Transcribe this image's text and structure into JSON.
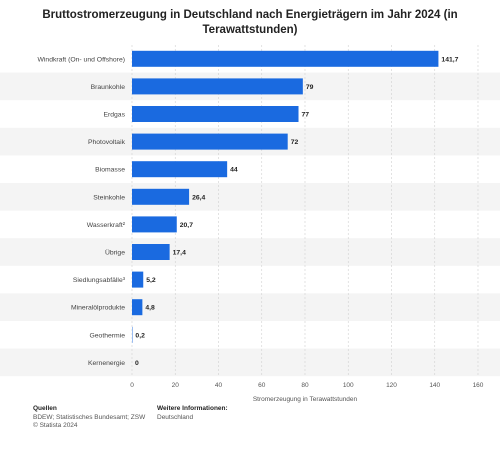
{
  "chart_data": {
    "type": "bar",
    "orientation": "horizontal",
    "title": "Bruttostromerzeugung in Deutschland nach Energieträgern im Jahr 2024 (in Terawattstunden)",
    "categories": [
      "Windkraft (On- und Offshore)",
      "Braunkohle",
      "Erdgas",
      "Photovoltaik",
      "Biomasse",
      "Steinkohle",
      "Wasserkraft²",
      "Übrige",
      "Siedlungsabfälle³",
      "Mineralölprodukte",
      "Geothermie",
      "Kernenergie"
    ],
    "values": [
      141.7,
      79,
      77,
      72,
      44,
      26.4,
      20.7,
      17.4,
      5.2,
      4.8,
      0.2,
      0
    ],
    "value_labels": [
      "141,7",
      "79",
      "77",
      "72",
      "44",
      "26,4",
      "20,7",
      "17,4",
      "5,2",
      "4,8",
      "0,2",
      "0"
    ],
    "xlabel": "Stromerzeugung in Terawattstunden",
    "ylabel": "",
    "xlim": [
      0,
      160
    ],
    "xticks": [
      0,
      20,
      40,
      60,
      80,
      100,
      120,
      140,
      160
    ],
    "grid": true,
    "bar_color": "#1a6ae0",
    "stripe_color": "#f4f4f4"
  },
  "footer": {
    "sources_heading": "Quellen",
    "sources_line1": "BDEW; Statistisches Bundesamt; ZSW",
    "sources_line2": "© Statista 2024",
    "info_heading": "Weitere Informationen:",
    "info_line1": "Deutschland"
  }
}
